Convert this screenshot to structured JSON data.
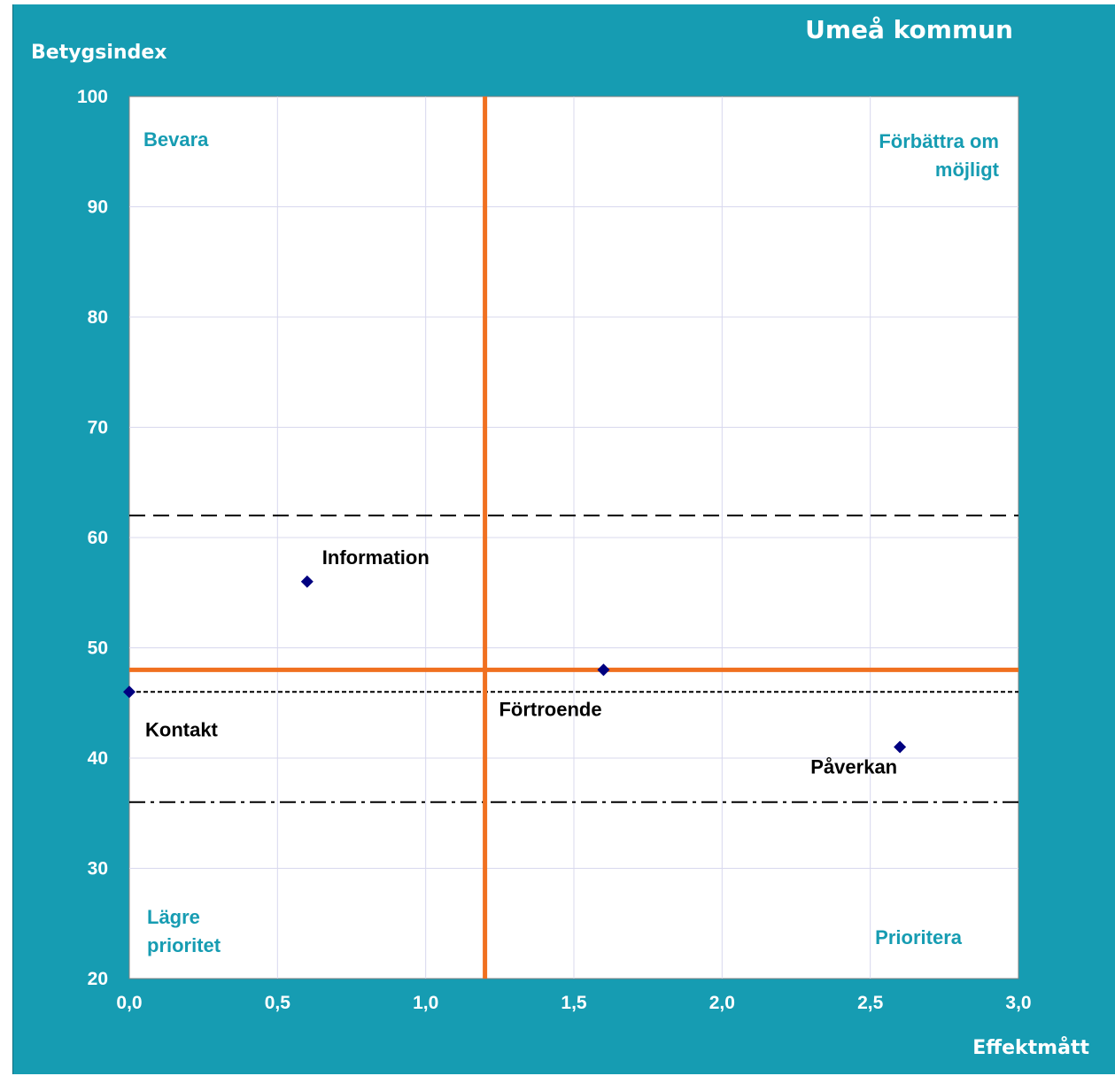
{
  "chart_data": {
    "type": "scatter",
    "title": "Umeå kommun",
    "ylabel": "Betygsindex",
    "xlabel": "Effektmått",
    "xlim": [
      0,
      3
    ],
    "ylim": [
      20,
      100
    ],
    "x_ticks": [
      "0,0",
      "0,5",
      "1,0",
      "1,5",
      "2,0",
      "2,5",
      "3,0"
    ],
    "y_ticks": [
      "20",
      "30",
      "40",
      "50",
      "60",
      "70",
      "80",
      "90",
      "100"
    ],
    "x_tick_values": [
      0,
      0.5,
      1,
      1.5,
      2,
      2.5,
      3
    ],
    "y_tick_values": [
      20,
      30,
      40,
      50,
      60,
      70,
      80,
      90,
      100
    ],
    "grid": true,
    "points": [
      {
        "label": "Information",
        "x": 0.6,
        "y": 56
      },
      {
        "label": "Kontakt",
        "x": 0.0,
        "y": 46
      },
      {
        "label": "Förtroende",
        "x": 1.6,
        "y": 48
      },
      {
        "label": "Påverkan",
        "x": 2.6,
        "y": 41
      }
    ],
    "reference_lines": {
      "vertical_x": 1.2,
      "horizontal_y": 48,
      "dashed_y": 62,
      "dotted_y": 46,
      "dashdot_y": 36
    },
    "quadrants": {
      "top_left": "Bevara",
      "top_right": [
        "Förbättra om",
        "möjligt"
      ],
      "bottom_left": [
        "Lägre",
        "prioritet"
      ],
      "bottom_right": "Prioritera"
    },
    "colors": {
      "background": "#169cb2",
      "plot_area": "#ffffff",
      "grid": "#d8d8ee",
      "reference_orange": "#f07020",
      "marker": "#000080",
      "quadrant_text": "#169cb2"
    }
  }
}
